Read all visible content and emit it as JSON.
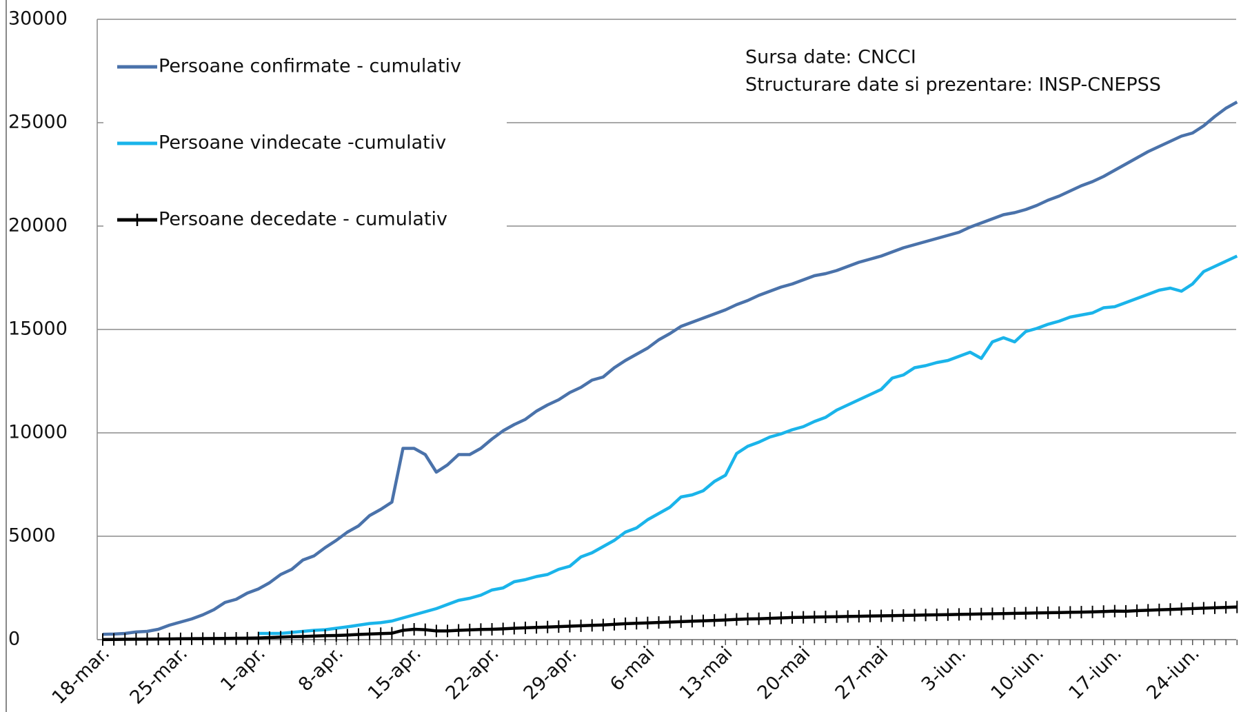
{
  "chart_data": {
    "type": "line",
    "categories": [
      "18-mar.",
      null,
      null,
      null,
      null,
      null,
      null,
      "25-mar.",
      null,
      null,
      null,
      null,
      null,
      null,
      "1-apr.",
      null,
      null,
      null,
      null,
      null,
      null,
      "8-apr.",
      null,
      null,
      null,
      null,
      null,
      null,
      "15-apr.",
      null,
      null,
      null,
      null,
      null,
      null,
      "22-apr.",
      null,
      null,
      null,
      null,
      null,
      null,
      "29-apr.",
      null,
      null,
      null,
      null,
      null,
      null,
      "6-mai",
      null,
      null,
      null,
      null,
      null,
      null,
      "13-mai",
      null,
      null,
      null,
      null,
      null,
      null,
      "20-mai",
      null,
      null,
      null,
      null,
      null,
      null,
      "27-mai",
      null,
      null,
      null,
      null,
      null,
      null,
      "3-iun.",
      null,
      null,
      null,
      null,
      null,
      null,
      "10-iun.",
      null,
      null,
      null,
      null,
      null,
      null,
      "17-iun.",
      null,
      null,
      null,
      null,
      null,
      null,
      "24-iun.",
      null,
      null,
      null,
      null
    ],
    "series": [
      {
        "name": "Persoane confirmate - cumulativ",
        "color": "#4a72aa",
        "values": [
          260,
          270,
          300,
          370,
          400,
          500,
          700,
          850,
          1000,
          1200,
          1450,
          1800,
          1950,
          2250,
          2450,
          2750,
          3150,
          3400,
          3850,
          4050,
          4450,
          4800,
          5200,
          5500,
          6000,
          6300,
          6650,
          9250,
          9250,
          8950,
          8100,
          8450,
          8950,
          8950,
          9250,
          9700,
          10100,
          10400,
          10650,
          11050,
          11350,
          11600,
          11950,
          12200,
          12550,
          12700,
          13150,
          13500,
          13800,
          14100,
          14500,
          14800,
          15150,
          15350,
          15550,
          15750,
          15950,
          16200,
          16400,
          16650,
          16850,
          17050,
          17200,
          17400,
          17600,
          17700,
          17850,
          18050,
          18250,
          18400,
          18550,
          18750,
          18950,
          19100,
          19250,
          19400,
          19550,
          19700,
          19950,
          20150,
          20350,
          20550,
          20650,
          20800,
          21000,
          21250,
          21450,
          21700,
          21950,
          22150,
          22400,
          22700,
          23000,
          23300,
          23600,
          23850,
          24100,
          24350,
          24500,
          24850,
          25300,
          25700,
          26000
        ]
      },
      {
        "name": "Persoane vindecate -cumulativ",
        "color": "#1ab4ea",
        "values": [
          null,
          null,
          null,
          null,
          null,
          null,
          null,
          null,
          null,
          null,
          null,
          null,
          null,
          null,
          300,
          300,
          300,
          350,
          400,
          450,
          480,
          550,
          620,
          700,
          780,
          820,
          900,
          1050,
          1200,
          1350,
          1500,
          1700,
          1900,
          2000,
          2150,
          2400,
          2500,
          2800,
          2900,
          3050,
          3150,
          3400,
          3550,
          4000,
          4200,
          4500,
          4800,
          5200,
          5400,
          5800,
          6100,
          6400,
          6900,
          7000,
          7200,
          7650,
          7950,
          9000,
          9350,
          9550,
          9800,
          9950,
          10150,
          10300,
          10550,
          10750,
          11100,
          11350,
          11600,
          11850,
          12100,
          12650,
          12800,
          13150,
          13250,
          13400,
          13500,
          13700,
          13900,
          13600,
          14400,
          14600,
          14400,
          14900,
          15050,
          15250,
          15400,
          15600,
          15700,
          15800,
          16050,
          16100,
          16300,
          16500,
          16700,
          16900,
          17000,
          16850,
          17200,
          17800,
          18050,
          18300,
          18550
        ]
      },
      {
        "name": "Persoane decedate - cumulativ",
        "color": "#000000",
        "marker": "plus",
        "values": [
          5,
          10,
          15,
          20,
          25,
          30,
          35,
          40,
          45,
          50,
          55,
          60,
          65,
          70,
          80,
          100,
          120,
          140,
          150,
          170,
          190,
          200,
          220,
          250,
          270,
          290,
          310,
          450,
          500,
          480,
          420,
          420,
          450,
          470,
          490,
          500,
          520,
          550,
          570,
          590,
          610,
          630,
          650,
          670,
          690,
          710,
          740,
          770,
          790,
          810,
          830,
          850,
          870,
          890,
          910,
          930,
          950,
          980,
          1000,
          1010,
          1030,
          1050,
          1070,
          1080,
          1090,
          1100,
          1110,
          1120,
          1130,
          1140,
          1150,
          1160,
          1170,
          1180,
          1190,
          1200,
          1210,
          1220,
          1230,
          1240,
          1250,
          1260,
          1270,
          1280,
          1290,
          1300,
          1310,
          1320,
          1330,
          1340,
          1360,
          1380,
          1370,
          1400,
          1420,
          1440,
          1460,
          1480,
          1500,
          1520,
          1540,
          1560,
          1580
        ]
      }
    ],
    "ylim": [
      0,
      30000
    ],
    "yticks": [
      0,
      5000,
      10000,
      15000,
      20000,
      25000,
      30000
    ],
    "grid": true,
    "legend": "upper left",
    "annotations": [
      "Sursa date: CNCCI",
      "Structurare date si prezentare:  INSP-CNEPSS"
    ]
  }
}
